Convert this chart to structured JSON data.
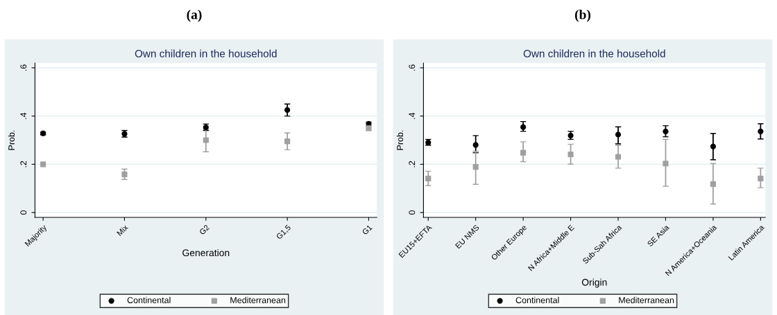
{
  "chart_data": [
    {
      "type": "scatter",
      "title": "Own children in the household",
      "xlabel": "Generation",
      "ylabel": "Prob.",
      "annotations": [
        "(a)"
      ],
      "categories": [
        "Majority",
        "Mix",
        "G2",
        "G1,5",
        "G1"
      ],
      "ylim": [
        -0.02,
        0.62
      ],
      "yticks": [
        {
          "value": 0,
          "label": "0"
        },
        {
          "value": 0.2,
          "label": ".2"
        },
        {
          "value": 0.4,
          "label": ".4"
        },
        {
          "value": 0.6,
          "label": ".6"
        }
      ],
      "grid": "y",
      "legend": "bottom",
      "series": [
        {
          "name": "Continental",
          "color": "#000000",
          "marker": "circle",
          "values": [
            0.328,
            0.326,
            0.353,
            0.425,
            0.368
          ],
          "errors": [
            [
              0.322,
              0.334
            ],
            [
              0.313,
              0.34
            ],
            [
              0.34,
              0.367
            ],
            [
              0.4,
              0.45
            ],
            [
              0.36,
              0.375
            ]
          ]
        },
        {
          "name": "Mediterranean",
          "color": "#a0a0a0",
          "marker": "square",
          "values": [
            0.2,
            0.158,
            0.3,
            0.295,
            0.35
          ],
          "errors": [
            null,
            [
              0.137,
              0.18
            ],
            [
              0.252,
              0.345
            ],
            [
              0.26,
              0.33
            ],
            [
              0.34,
              0.36
            ]
          ]
        }
      ]
    },
    {
      "type": "scatter",
      "title": "Own children in the household",
      "xlabel": "Origin",
      "ylabel": "Prob.",
      "annotations": [
        "(b)"
      ],
      "categories": [
        "EU15+EFTA",
        "EU NMS",
        "Other Europe",
        "N Africa+Middle E",
        "Sub-Sah Africa",
        "SE Asia",
        "N America+Oceania",
        "Latin America"
      ],
      "ylim": [
        -0.02,
        0.62
      ],
      "yticks": [
        {
          "value": 0,
          "label": "0"
        },
        {
          "value": 0.2,
          "label": ".2"
        },
        {
          "value": 0.4,
          "label": ".4"
        },
        {
          "value": 0.6,
          "label": ".6"
        }
      ],
      "grid": "y",
      "legend": "bottom",
      "series": [
        {
          "name": "Continental",
          "color": "#000000",
          "marker": "circle",
          "values": [
            0.29,
            0.28,
            0.354,
            0.319,
            0.323,
            0.336,
            0.274,
            0.336
          ],
          "errors": [
            [
              0.279,
              0.303
            ],
            [
              0.248,
              0.319
            ],
            [
              0.337,
              0.377
            ],
            [
              0.303,
              0.337
            ],
            [
              0.285,
              0.355
            ],
            [
              0.314,
              0.36
            ],
            [
              0.219,
              0.328
            ],
            [
              0.305,
              0.368
            ]
          ]
        },
        {
          "name": "Mediterranean",
          "color": "#a0a0a0",
          "marker": "square",
          "values": [
            0.141,
            0.189,
            0.248,
            0.241,
            0.231,
            0.203,
            0.118,
            0.141
          ],
          "errors": [
            [
              0.112,
              0.171
            ],
            [
              0.117,
              0.254
            ],
            [
              0.211,
              0.293
            ],
            [
              0.201,
              0.283
            ],
            [
              0.184,
              0.279
            ],
            [
              0.109,
              0.303
            ],
            [
              0.035,
              0.203
            ],
            [
              0.103,
              0.184
            ]
          ]
        }
      ]
    }
  ]
}
